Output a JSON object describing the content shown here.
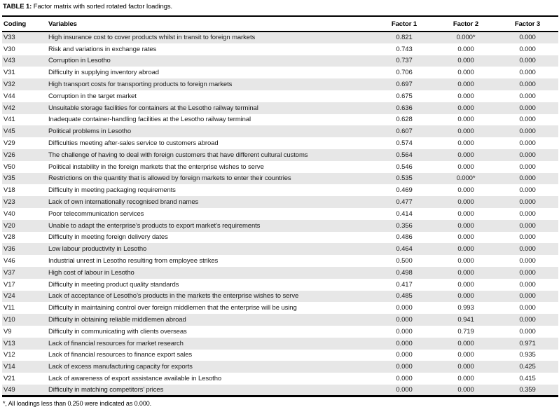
{
  "page": {
    "title_label": "TABLE 1:",
    "title_text": " Factor matrix with sorted rotated factor loadings.",
    "footnote": "*, All loadings less than 0.250 were indicated as 0.000."
  },
  "colors": {
    "stripe": "#e7e7e7",
    "border": "#000000",
    "text": "#1a1a1a"
  },
  "table": {
    "columns": [
      "Coding",
      "Variables",
      "Factor 1",
      "Factor 2",
      "Factor 3"
    ],
    "rows": [
      {
        "coding": "V33",
        "variable": "High insurance cost to cover products whilst in transit to foreign markets",
        "f1": "0.821",
        "f2": "0.000*",
        "f3": "0.000"
      },
      {
        "coding": "V30",
        "variable": "Risk and variations in exchange rates",
        "f1": "0.743",
        "f2": "0.000",
        "f3": "0.000"
      },
      {
        "coding": "V43",
        "variable": "Corruption in Lesotho",
        "f1": "0.737",
        "f2": "0.000",
        "f3": "0.000"
      },
      {
        "coding": "V31",
        "variable": "Difficulty in supplying inventory abroad",
        "f1": "0.706",
        "f2": "0.000",
        "f3": "0.000"
      },
      {
        "coding": "V32",
        "variable": "High transport costs for transporting products to foreign markets",
        "f1": "0.697",
        "f2": "0.000",
        "f3": "0.000"
      },
      {
        "coding": "V44",
        "variable": "Corruption in the target market",
        "f1": "0.675",
        "f2": "0.000",
        "f3": "0.000"
      },
      {
        "coding": "V42",
        "variable": "Unsuitable storage facilities for containers at the Lesotho railway terminal",
        "f1": "0.636",
        "f2": "0.000",
        "f3": "0.000"
      },
      {
        "coding": "V41",
        "variable": "Inadequate container-handling facilities at the Lesotho railway terminal",
        "f1": "0.628",
        "f2": "0.000",
        "f3": "0.000"
      },
      {
        "coding": "V45",
        "variable": "Political problems in Lesotho",
        "f1": "0.607",
        "f2": "0.000",
        "f3": "0.000"
      },
      {
        "coding": "V29",
        "variable": "Difficulties meeting after-sales service to customers abroad",
        "f1": "0.574",
        "f2": "0.000",
        "f3": "0.000"
      },
      {
        "coding": "V26",
        "variable": "The challenge of having to deal with foreign customers that have different cultural customs",
        "f1": "0.564",
        "f2": "0.000",
        "f3": "0.000"
      },
      {
        "coding": "V50",
        "variable": "Political instability in the foreign markets that the enterprise wishes to serve",
        "f1": "0.546",
        "f2": "0.000",
        "f3": "0.000"
      },
      {
        "coding": "V35",
        "variable": "Restrictions on the quantity that is allowed by foreign markets to enter their countries",
        "f1": "0.535",
        "f2": "0.000*",
        "f3": "0.000"
      },
      {
        "coding": "V18",
        "variable": "Difficulty in meeting packaging requirements",
        "f1": "0.469",
        "f2": "0.000",
        "f3": "0.000"
      },
      {
        "coding": "V23",
        "variable": "Lack of own internationally recognised brand names",
        "f1": "0.477",
        "f2": "0.000",
        "f3": "0.000"
      },
      {
        "coding": "V40",
        "variable": "Poor telecommunication services",
        "f1": "0.414",
        "f2": "0.000",
        "f3": "0.000"
      },
      {
        "coding": "V20",
        "variable": "Unable to adapt the enterprise’s products to export market’s requirements",
        "f1": "0.356",
        "f2": "0.000",
        "f3": "0.000"
      },
      {
        "coding": "V28",
        "variable": "Difficulty in meeting foreign delivery dates",
        "f1": "0.486",
        "f2": "0.000",
        "f3": "0.000"
      },
      {
        "coding": "V36",
        "variable": "Low labour productivity in Lesotho",
        "f1": "0.464",
        "f2": "0.000",
        "f3": "0.000"
      },
      {
        "coding": "V46",
        "variable": "Industrial unrest in Lesotho resulting from employee strikes",
        "f1": "0.500",
        "f2": "0.000",
        "f3": "0.000"
      },
      {
        "coding": "V37",
        "variable": "High cost of labour in Lesotho",
        "f1": "0.498",
        "f2": "0.000",
        "f3": "0.000"
      },
      {
        "coding": "V17",
        "variable": "Difficulty in meeting product quality standards",
        "f1": "0.417",
        "f2": "0.000",
        "f3": "0.000"
      },
      {
        "coding": "V24",
        "variable": "Lack of acceptance of Lesotho’s products in the markets the enterprise wishes to serve",
        "f1": "0.485",
        "f2": "0.000",
        "f3": "0.000"
      },
      {
        "coding": "V11",
        "variable": "Difficulty in maintaining control over foreign middlemen that the enterprise will be using",
        "f1": "0.000",
        "f2": "0.993",
        "f3": "0.000"
      },
      {
        "coding": "V10",
        "variable": "Difficulty in obtaining reliable middlemen abroad",
        "f1": "0.000",
        "f2": "0.941",
        "f3": "0.000"
      },
      {
        "coding": "V9",
        "variable": "Difficulty in communicating with clients overseas",
        "f1": "0.000",
        "f2": "0.719",
        "f3": "0.000"
      },
      {
        "coding": "V13",
        "variable": "Lack of financial resources for market research",
        "f1": "0.000",
        "f2": "0.000",
        "f3": "0.971"
      },
      {
        "coding": "V12",
        "variable": "Lack of financial resources to finance export sales",
        "f1": "0.000",
        "f2": "0.000",
        "f3": "0.935"
      },
      {
        "coding": "V14",
        "variable": "Lack of excess manufacturing capacity for exports",
        "f1": "0.000",
        "f2": "0.000",
        "f3": "0.425"
      },
      {
        "coding": "V21",
        "variable": "Lack of awareness of export assistance available in Lesotho",
        "f1": "0.000",
        "f2": "0.000",
        "f3": "0.415"
      },
      {
        "coding": "V49",
        "variable": "Difficulty in matching competitors’ prices",
        "f1": "0.000",
        "f2": "0.000",
        "f3": "0.359"
      }
    ]
  }
}
